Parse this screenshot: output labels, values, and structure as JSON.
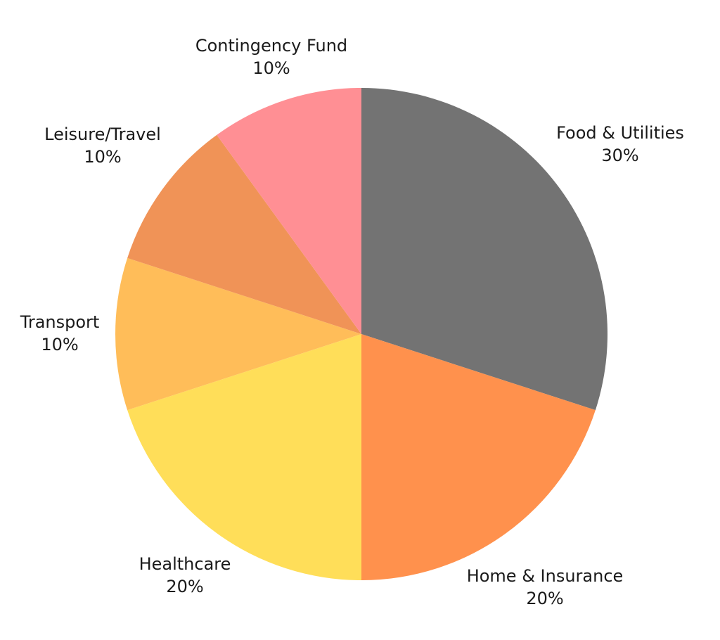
{
  "chart_data": {
    "type": "pie",
    "categories": [
      "Food & Utilities",
      "Home & Insurance",
      "Healthcare",
      "Transport",
      "Leisure/Travel",
      "Contingency Fund"
    ],
    "values": [
      30,
      20,
      20,
      10,
      10,
      10
    ],
    "value_labels": [
      "30%",
      "20%",
      "20%",
      "10%",
      "10%",
      "10%"
    ],
    "colors": [
      "#737373",
      "#ff914d",
      "#ffde59",
      "#ffbd59",
      "#f09357",
      "#ff8f94"
    ]
  }
}
